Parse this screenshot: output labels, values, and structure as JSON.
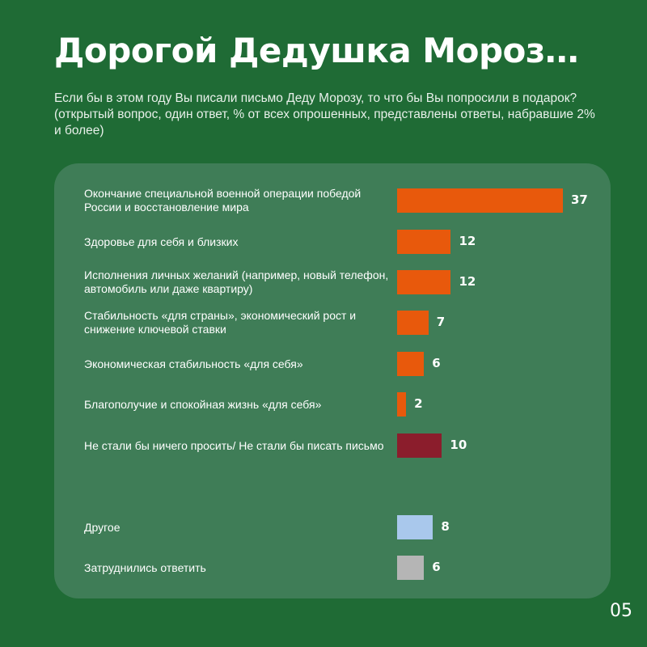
{
  "header": {
    "title": "Дорогой Дедушка Мороз…",
    "subtitle": "Если бы в этом году Вы писали письмо Деду Морозу, то что бы Вы попросили в подарок? (открытый вопрос, один ответ, % от всех опрошенных, представлены ответы, набравшие 2% и более)"
  },
  "footer": {
    "page_number": "05"
  },
  "colors": {
    "background": "#1f6b35",
    "panel": "#3f7d57",
    "orange": "#e8590c",
    "dark_red": "#8b1d2c",
    "light_blue": "#a9c8ec",
    "gray": "#b5b5b5"
  },
  "chart_data": {
    "type": "bar",
    "orientation": "horizontal",
    "unit": "%",
    "categories": [
      "Окончание специальной военной операции победой России и восстановление мира",
      "Здоровье для себя и близких",
      "Исполнения личных желаний (например, новый телефон, автомобиль или даже квартиру)",
      "Стабильность «для страны», экономический рост и снижение ключевой ставки",
      "Экономическая стабильность «для себя»",
      "Благополучие и спокойная жизнь «для себя»",
      "Не стали бы ничего просить/ Не стали бы писать письмо",
      "Другое",
      "Затруднились ответить"
    ],
    "values": [
      37,
      12,
      12,
      7,
      6,
      2,
      10,
      8,
      6
    ],
    "bar_colors": [
      "#e8590c",
      "#e8590c",
      "#e8590c",
      "#e8590c",
      "#e8590c",
      "#e8590c",
      "#8b1d2c",
      "#a9c8ec",
      "#b5b5b5"
    ],
    "title": "",
    "xlabel": "",
    "ylabel": "",
    "xlim": [
      0,
      37
    ],
    "grid": false,
    "legend": "none"
  }
}
